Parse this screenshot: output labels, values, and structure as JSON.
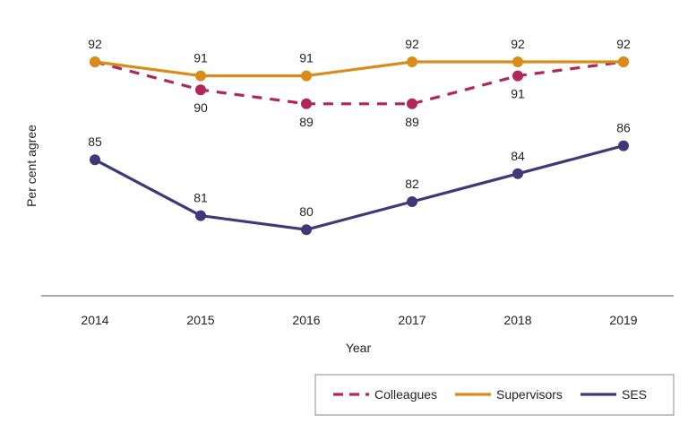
{
  "chart_data": {
    "type": "line",
    "title": "",
    "xlabel": "Year",
    "ylabel": "Per cent agree",
    "x": [
      "2014",
      "2015",
      "2016",
      "2017",
      "2018",
      "2019"
    ],
    "ylim": [
      70,
      93.5
    ],
    "grid": false,
    "legend_position": "bottom-right",
    "series": [
      {
        "name": "Colleagues",
        "values": [
          92,
          90,
          89,
          89,
          91,
          92
        ],
        "color": "#b0285a",
        "style": "dashed",
        "labels": [
          "",
          "90",
          "89",
          "89",
          "91",
          ""
        ],
        "label_pos": "below"
      },
      {
        "name": "Supervisors",
        "values": [
          92,
          91,
          91,
          92,
          92,
          92
        ],
        "color": "#d98c1a",
        "style": "solid",
        "labels": [
          "92",
          "91",
          "91",
          "92",
          "92",
          "92"
        ],
        "label_pos": "above"
      },
      {
        "name": "SES",
        "values": [
          85,
          81,
          80,
          82,
          84,
          86
        ],
        "color": "#3d3a7a",
        "style": "solid",
        "labels": [
          "85",
          "81",
          "80",
          "82",
          "84",
          "86"
        ],
        "label_pos": "above"
      }
    ]
  }
}
